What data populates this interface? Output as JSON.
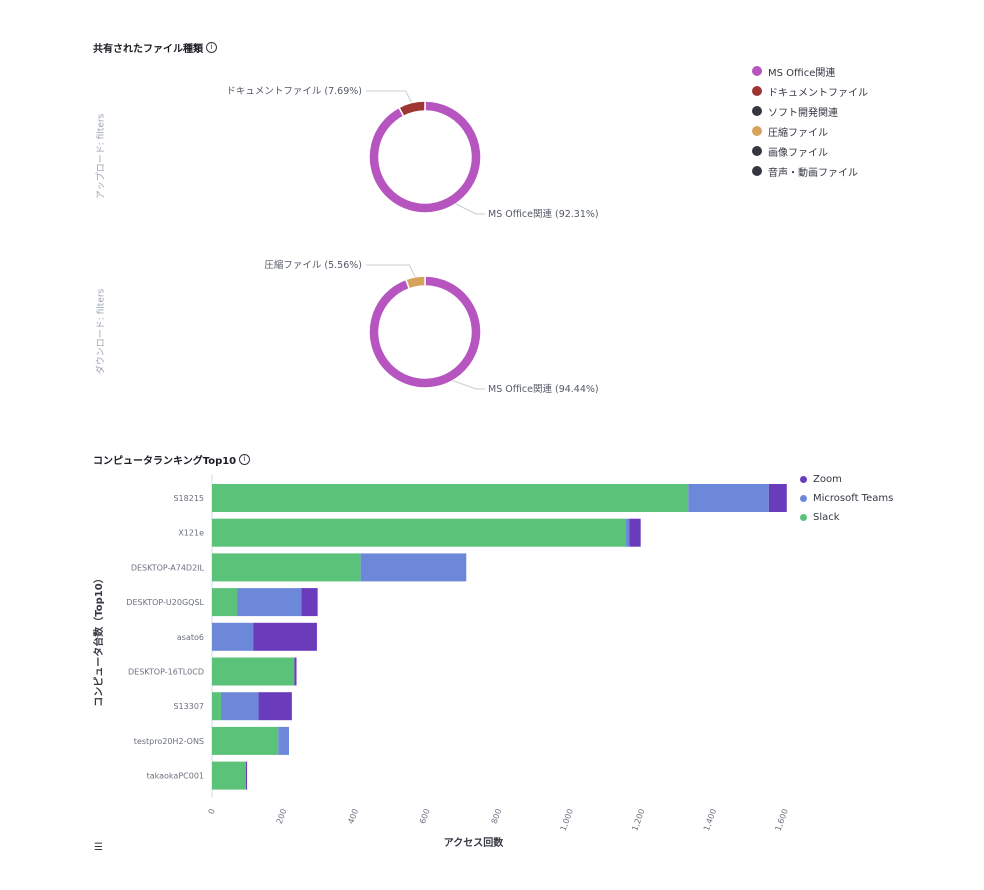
{
  "pie_section": {
    "title": "共有されたファイル種類",
    "legend": [
      {
        "label": "MS Office関連",
        "color": "#b655c0"
      },
      {
        "label": "ドキュメントファイル",
        "color": "#9e3533"
      },
      {
        "label": "ソフト開発関連",
        "color": "#343741"
      },
      {
        "label": "圧縮ファイル",
        "color": "#d6a35c"
      },
      {
        "label": "画像ファイル",
        "color": "#343741"
      },
      {
        "label": "音声・動画ファイル",
        "color": "#343741"
      }
    ]
  },
  "bar_section": {
    "title": "コンピュータランキングTop10"
  },
  "chart_data": [
    {
      "type": "pie",
      "title": "アップロード: filters",
      "slices": [
        {
          "label": "MS Office関連",
          "value": 92.31,
          "display": "MS Office関連 (92.31%)",
          "color": "#b655c0"
        },
        {
          "label": "ドキュメントファイル",
          "value": 7.69,
          "display": "ドキュメントファイル (7.69%)",
          "color": "#9e3533"
        }
      ]
    },
    {
      "type": "pie",
      "title": "ダウンロード: filters",
      "slices": [
        {
          "label": "MS Office関連",
          "value": 94.44,
          "display": "MS Office関連 (94.44%)",
          "color": "#b655c0"
        },
        {
          "label": "圧縮ファイル",
          "value": 5.56,
          "display": "圧縮ファイル (5.56%)",
          "color": "#d6a35c"
        }
      ]
    },
    {
      "type": "bar",
      "orientation": "horizontal",
      "stacked": true,
      "xlabel": "アクセス回数",
      "ylabel": "コンピュータ台数（Top10）",
      "xlim": [
        0,
        1600
      ],
      "xticks": [
        "0",
        "200",
        "400",
        "600",
        "800",
        "1,000",
        "1,200",
        "1,400",
        "1,600"
      ],
      "xtick_values": [
        0,
        200,
        400,
        600,
        800,
        1000,
        1200,
        1400,
        1600
      ],
      "categories": [
        "S18215",
        "X121e",
        "DESKTOP-A74D2IL",
        "DESKTOP-U20GQSL",
        "asato6",
        "DESKTOP-16TL0CD",
        "S13307",
        "testpro20H2-ONS",
        "takaokaPC001"
      ],
      "legend_position": "right",
      "series": [
        {
          "name": "Slack",
          "color": "#5bc27a",
          "values": [
            1330,
            1155,
            415,
            70,
            0,
            230,
            25,
            185,
            95
          ]
        },
        {
          "name": "Microsoft Teams",
          "color": "#6d88d9",
          "values": [
            225,
            10,
            295,
            180,
            115,
            0,
            105,
            30,
            0
          ]
        },
        {
          "name": "Zoom",
          "color": "#6a3cbc",
          "values": [
            50,
            32,
            0,
            45,
            178,
            6,
            93,
            0,
            3
          ]
        }
      ],
      "legend_order": [
        "Zoom",
        "Microsoft Teams",
        "Slack"
      ]
    }
  ]
}
